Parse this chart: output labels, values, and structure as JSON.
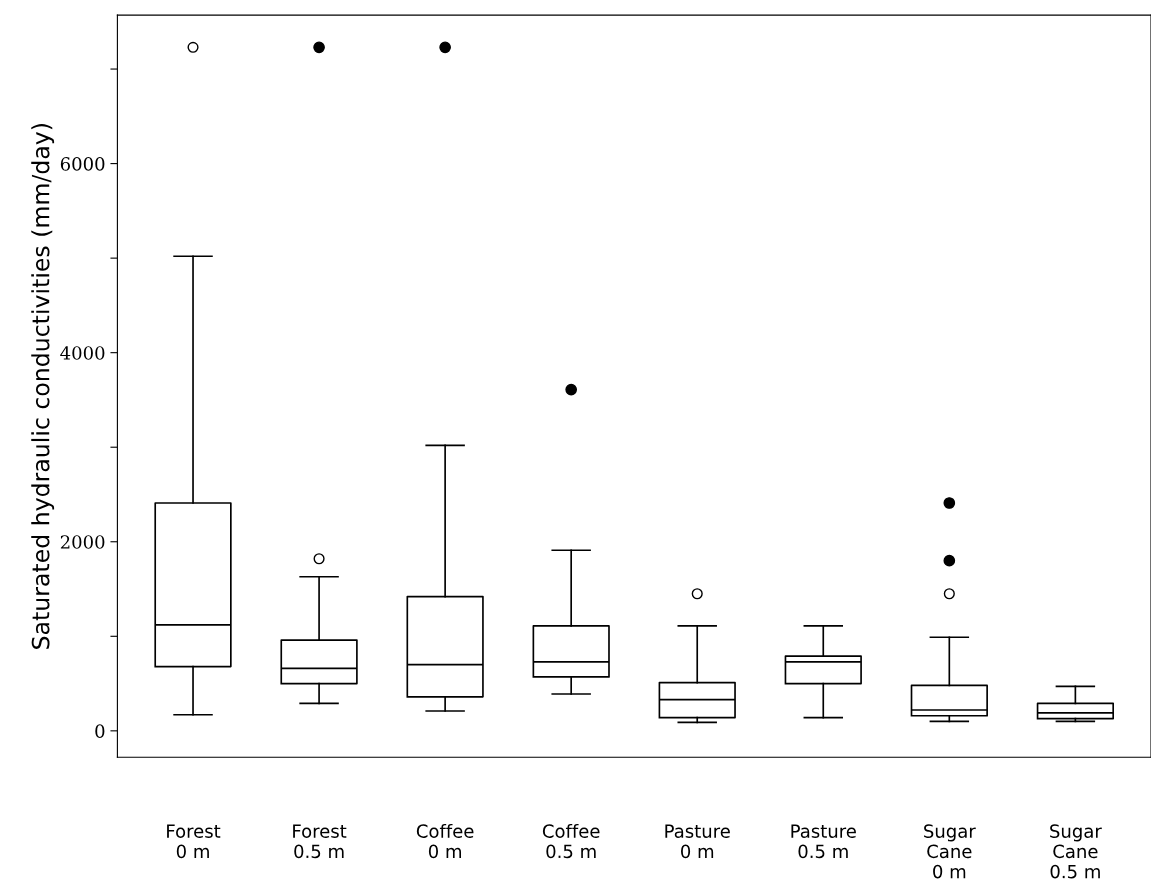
{
  "chart_data": {
    "type": "box",
    "ylabel": "Saturated hydraulic conductivities (mm/day)",
    "categories": [
      "Forest\n0 m",
      "Forest\n0.5 m",
      "Coffee\n0 m",
      "Coffee\n0.5 m",
      "Pasture\n0 m",
      "Pasture\n0.5 m",
      "Sugar\nCane\n0 m",
      "Sugar\nCane\n0.5 m"
    ],
    "boxes": [
      {
        "low": 170,
        "q1": 680,
        "median": 1120,
        "q3": 2410,
        "high": 5020,
        "outliers": [
          7230
        ]
      },
      {
        "low": 290,
        "q1": 500,
        "median": 660,
        "q3": 960,
        "high": 1630,
        "outliers": [
          1820
        ]
      },
      {
        "low": 210,
        "q1": 360,
        "median": 700,
        "q3": 1420,
        "high": 3020
      },
      {
        "low": 390,
        "q1": 570,
        "median": 730,
        "q3": 1110,
        "high": 1910
      },
      {
        "low": 90,
        "q1": 140,
        "median": 330,
        "q3": 510,
        "high": 1110,
        "outliers": [
          1450
        ]
      },
      {
        "low": 140,
        "q1": 500,
        "median": 730,
        "q3": 790,
        "high": 1110
      },
      {
        "low": 100,
        "q1": 160,
        "median": 220,
        "q3": 480,
        "high": 990,
        "outliers": [
          1450
        ]
      },
      {
        "low": 100,
        "q1": 130,
        "median": 190,
        "q3": 290,
        "high": 470
      }
    ],
    "series": [
      {
        "type": "scatter",
        "color": "#000000",
        "values": [
          null,
          7230,
          7230,
          3610,
          null,
          null,
          1800,
          null
        ]
      },
      {
        "type": "scatter",
        "color": "#000000",
        "values": [
          null,
          null,
          null,
          null,
          null,
          null,
          2410,
          null
        ]
      }
    ],
    "ylim": [
      -280,
      7570
    ],
    "yticks": [
      0,
      {
        "value": 1000,
        "label": null
      },
      2000,
      {
        "value": 3000,
        "label": null
      },
      4000,
      {
        "value": 5000,
        "label": null
      },
      6000,
      {
        "value": 7000,
        "label": null
      }
    ],
    "grid": false
  }
}
